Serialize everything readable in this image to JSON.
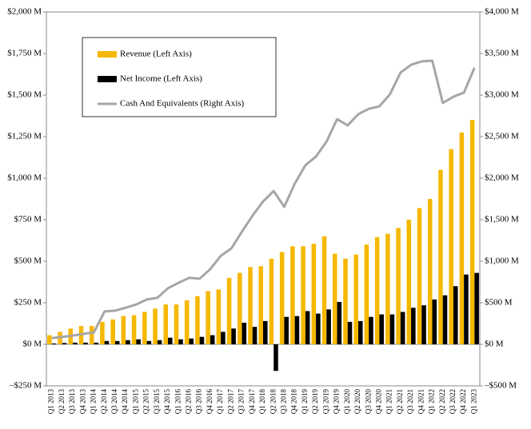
{
  "chart_data": {
    "type": "bar_line",
    "categories": [
      "Q1 2013",
      "Q2 2013",
      "Q3 2013",
      "Q4 2013",
      "Q1 2014",
      "Q2 2014",
      "Q3 2014",
      "Q4 2014",
      "Q1 2015",
      "Q2 2015",
      "Q3 2015",
      "Q4 2015",
      "Q1 2016",
      "Q2 2016",
      "Q3 2016",
      "Q4 2016",
      "Q1 2017",
      "Q2 2017",
      "Q3 2017",
      "Q4 2017",
      "Q1 2018",
      "Q2 2018",
      "Q3 2018",
      "Q4 2018",
      "Q1 2019",
      "Q2 2019",
      "Q3 2019",
      "Q4 2019",
      "Q1 2020",
      "Q2 2020",
      "Q3 2020",
      "Q4 2020",
      "Q1 2021",
      "Q2 2021",
      "Q3 2021",
      "Q4 2021",
      "Q1 2022",
      "Q2 2022",
      "Q3 2022",
      "Q4 2022",
      "Q1 2023"
    ],
    "series": [
      {
        "name": "Revenue (Left Axis)",
        "type": "bar",
        "color": "#f5b800",
        "values": [
          55,
          75,
          95,
          110,
          110,
          135,
          150,
          170,
          175,
          195,
          215,
          240,
          240,
          265,
          290,
          320,
          330,
          400,
          430,
          465,
          470,
          515,
          555,
          590,
          590,
          605,
          650,
          545,
          515,
          540,
          600,
          645,
          665,
          700,
          750,
          820,
          875,
          1050,
          1175,
          1275,
          1350
        ]
      },
      {
        "name": "Net Income (Left Axis)",
        "type": "bar",
        "color": "#000000",
        "values": [
          5,
          8,
          10,
          10,
          10,
          20,
          20,
          25,
          30,
          20,
          25,
          40,
          30,
          35,
          45,
          55,
          75,
          95,
          130,
          105,
          140,
          -160,
          165,
          170,
          200,
          185,
          210,
          255,
          135,
          140,
          165,
          180,
          180,
          195,
          220,
          235,
          270,
          295,
          350,
          420,
          430
        ]
      },
      {
        "name": "Cash And Equivalents (Right Axis)",
        "type": "line",
        "axis": "y2",
        "color": "#a6a6a6",
        "values": [
          75,
          90,
          105,
          125,
          145,
          395,
          405,
          440,
          480,
          540,
          560,
          675,
          740,
          800,
          790,
          905,
          1065,
          1155,
          1355,
          1550,
          1720,
          1845,
          1655,
          1935,
          2155,
          2260,
          2440,
          2710,
          2635,
          2770,
          2835,
          2865,
          3010,
          3270,
          3365,
          3405,
          3415,
          2905,
          2980,
          3030,
          3330
        ]
      }
    ],
    "ylim": [
      -250,
      2000
    ],
    "yticks": [
      {
        "value": -250,
        "label": "–$250 M"
      },
      {
        "value": 0,
        "label": "$0 M"
      },
      {
        "value": 250,
        "label": "$250 M"
      },
      {
        "value": 500,
        "label": "$500 M"
      },
      {
        "value": 750,
        "label": "$750 M"
      },
      {
        "value": 1000,
        "label": "$1,000 M"
      },
      {
        "value": 1250,
        "label": "$1,250 M"
      },
      {
        "value": 1500,
        "label": "$1,500 M"
      },
      {
        "value": 1750,
        "label": "$1,750 M"
      },
      {
        "value": 2000,
        "label": "$2,000 M"
      }
    ],
    "y2lim": [
      -500,
      4000
    ],
    "y2ticks": [
      {
        "value": -500,
        "label": "–$500 M"
      },
      {
        "value": 0,
        "label": "$0 M"
      },
      {
        "value": 500,
        "label": "$500 M"
      },
      {
        "value": 1000,
        "label": "$1,000 M"
      },
      {
        "value": 1500,
        "label": "$1,500 M"
      },
      {
        "value": 2000,
        "label": "$2,000 M"
      },
      {
        "value": 2500,
        "label": "$2,500 M"
      },
      {
        "value": 3000,
        "label": "$3,000 M"
      },
      {
        "value": 3500,
        "label": "$3,500 M"
      },
      {
        "value": 4000,
        "label": "$4,000 M"
      }
    ],
    "legend": "upper left"
  }
}
